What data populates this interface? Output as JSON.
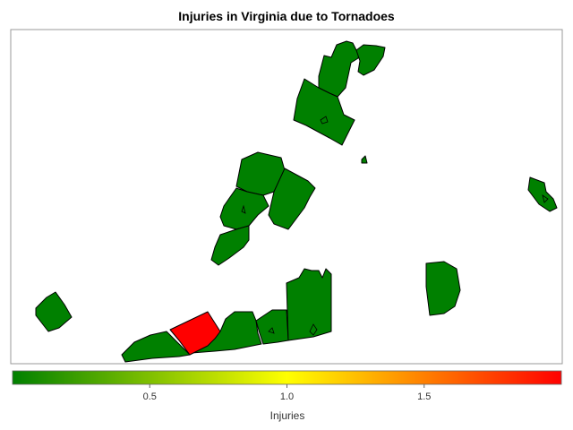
{
  "chart_data": {
    "type": "choropleth",
    "title": "Injuries in Virginia due to Tornadoes",
    "colorbar": {
      "label": "Injuries",
      "min": 0,
      "max": 2,
      "ticks": [
        "0.5",
        "1.0",
        "1.5"
      ],
      "colors": [
        "#008000",
        "#ffff00",
        "#ff0000"
      ]
    },
    "regions": [
      {
        "name": "",
        "injuries": 0
      },
      {
        "name": "",
        "injuries": 0
      },
      {
        "name": "",
        "injuries": 0
      },
      {
        "name": "",
        "injuries": 0
      },
      {
        "name": "",
        "injuries": 0
      },
      {
        "name": "",
        "injuries": 0
      },
      {
        "name": "",
        "injuries": 0
      },
      {
        "name": "",
        "injuries": 0
      },
      {
        "name": "",
        "injuries": 0
      },
      {
        "name": "",
        "injuries": 0
      },
      {
        "name": "",
        "injuries": 0
      },
      {
        "name": "",
        "injuries": 0
      },
      {
        "name": "",
        "injuries": 0
      },
      {
        "name": "",
        "injuries": 2
      },
      {
        "name": "",
        "injuries": 0
      },
      {
        "name": "",
        "injuries": 0
      },
      {
        "name": "",
        "injuries": 2
      }
    ]
  }
}
